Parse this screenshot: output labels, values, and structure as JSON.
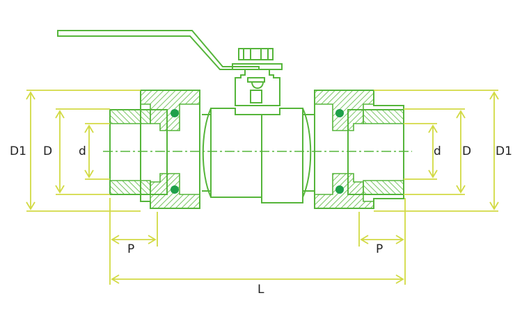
{
  "colors": {
    "body_stroke": "#55b53a",
    "dimension_stroke": "#d2da44",
    "seal": "#1fa04a",
    "label_text": "#222222",
    "background": "#ffffff"
  },
  "labels": {
    "d1_left": "D1",
    "d_left": "D",
    "small_d_left": "d",
    "small_d_right": "d",
    "d_right": "D",
    "d1_right": "D1",
    "p_left": "P",
    "p_right": "P",
    "l": "L"
  }
}
